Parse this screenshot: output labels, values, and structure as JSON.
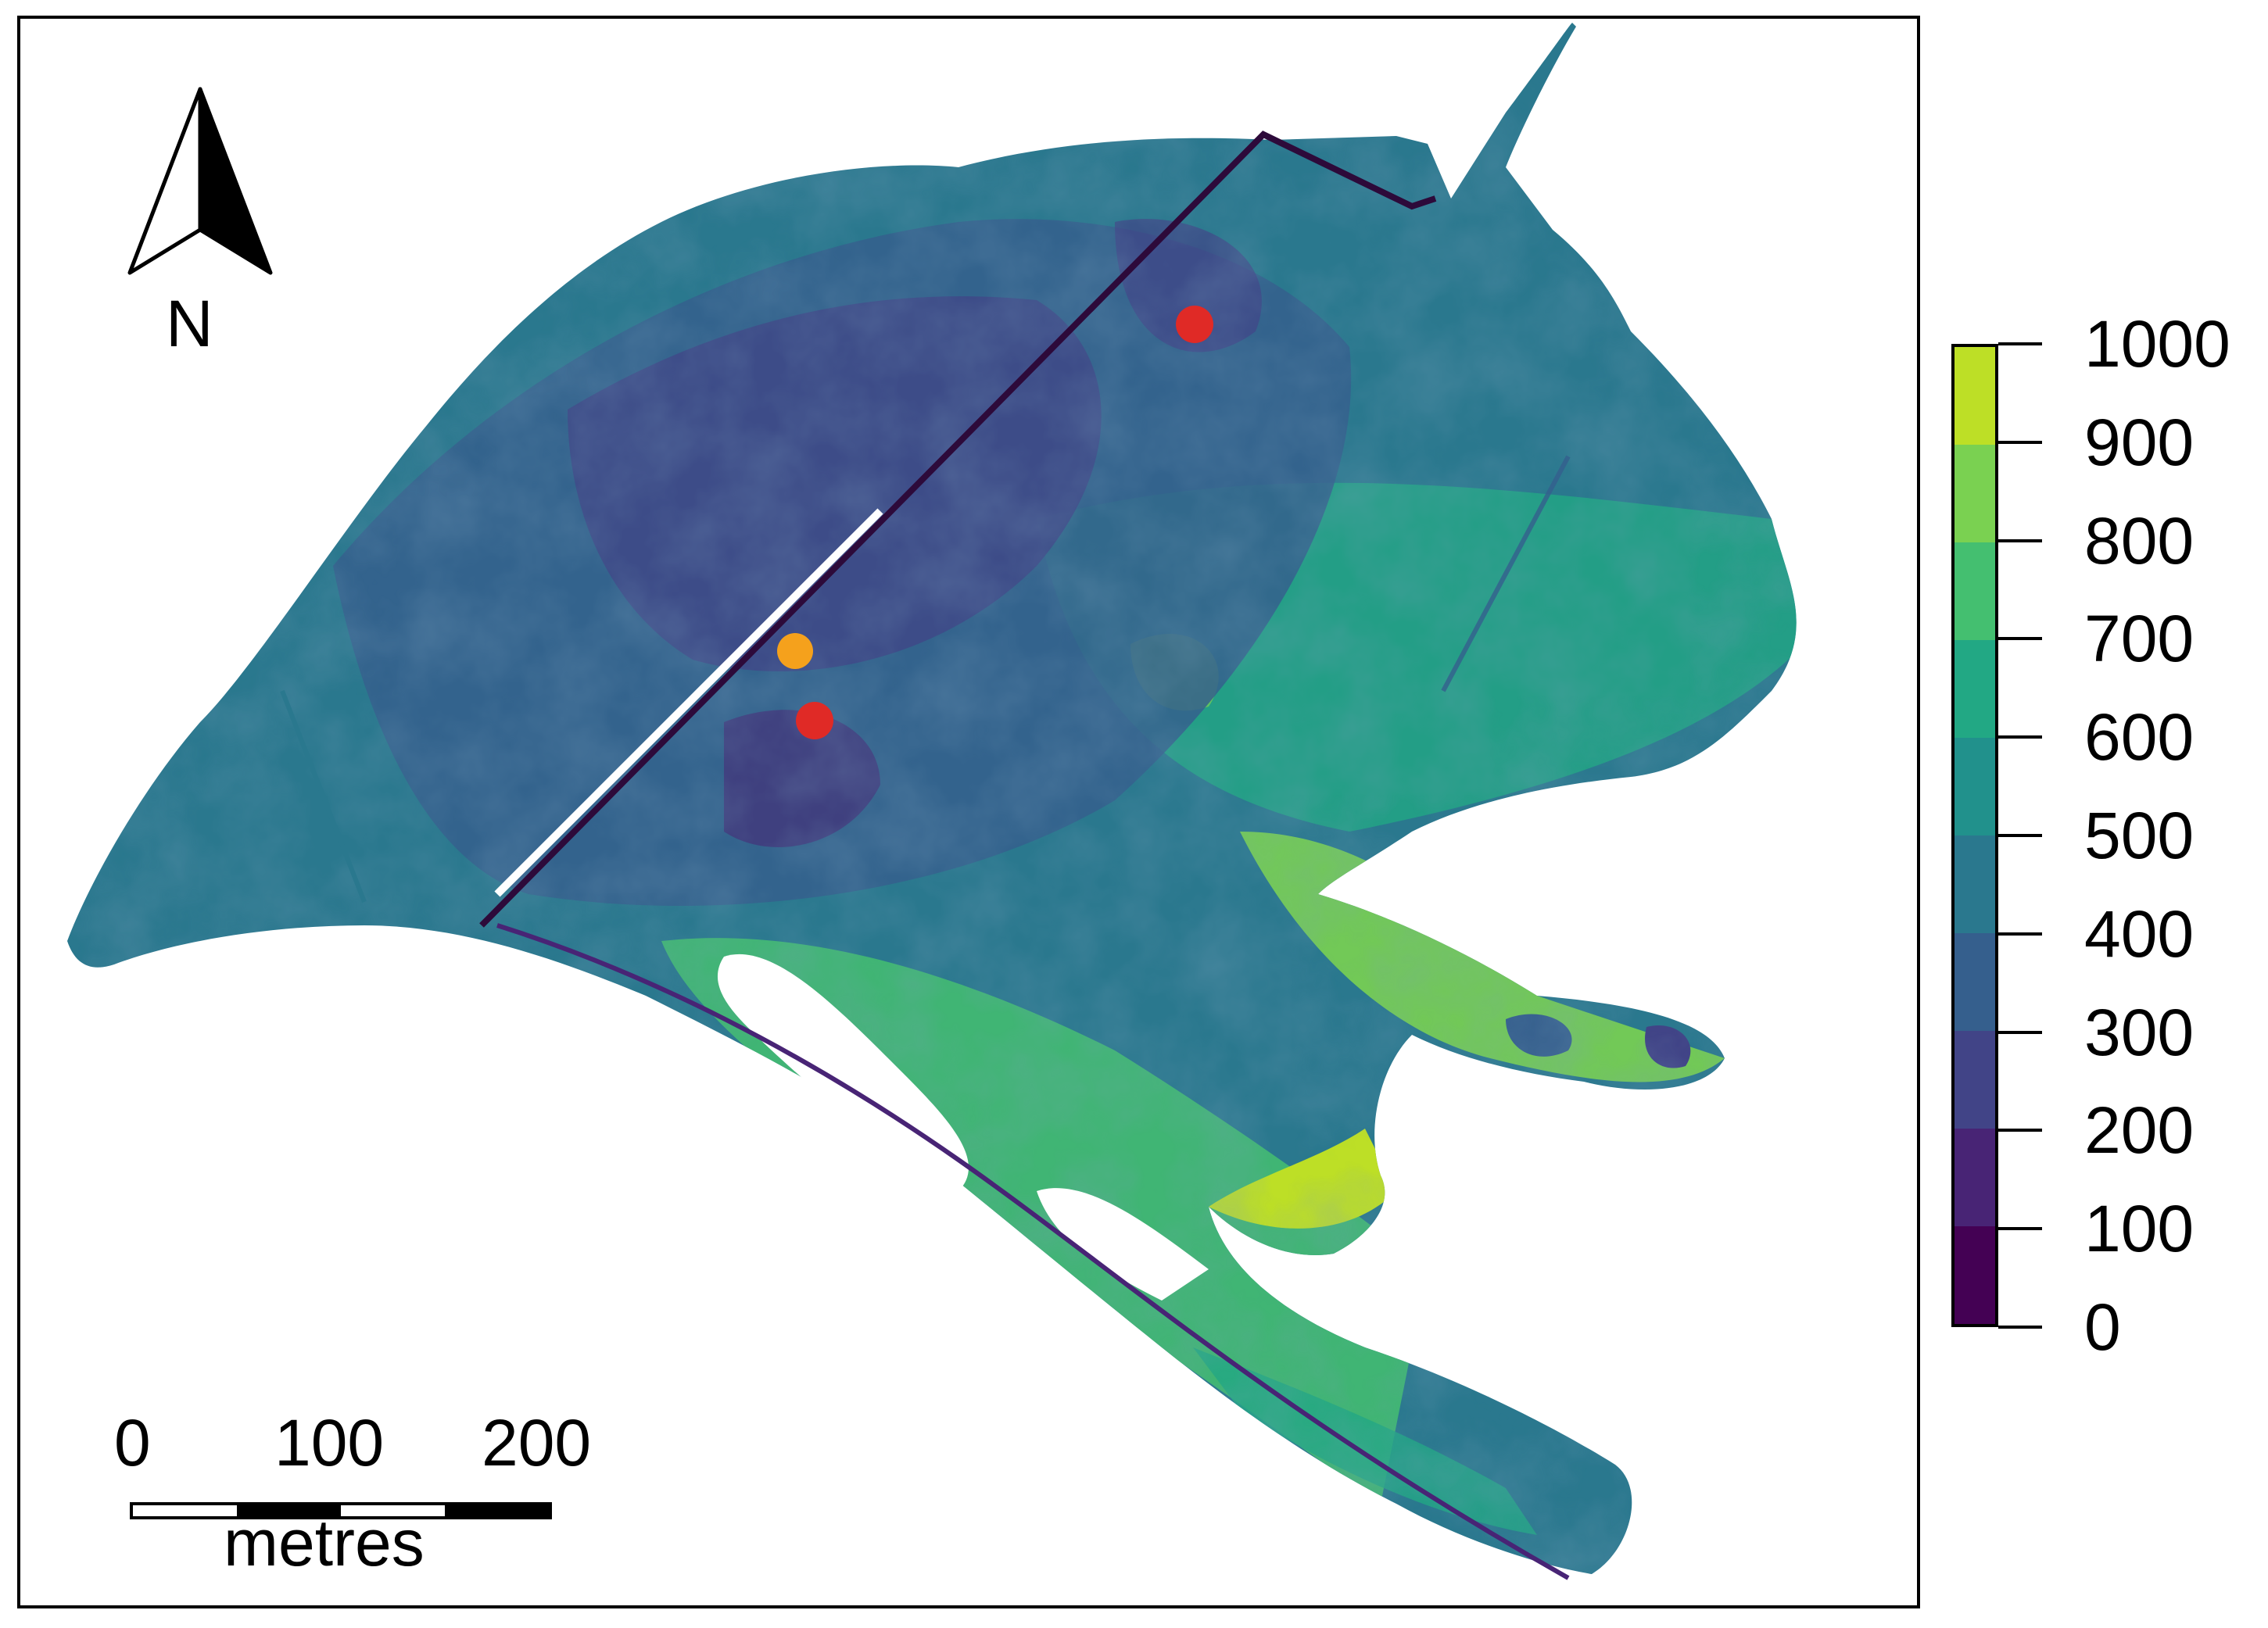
{
  "north_label": "N",
  "scale": {
    "ticks": [
      "0",
      "100",
      "200"
    ],
    "unit": "metres"
  },
  "legend": {
    "labels": [
      "1000",
      "900",
      "800",
      "700",
      "600",
      "500",
      "400",
      "300",
      "200",
      "100",
      "0"
    ],
    "colors": [
      "#440154",
      "#482475",
      "#414487",
      "#355f8d",
      "#2a788e",
      "#21918c",
      "#22a884",
      "#44bf70",
      "#7ad151",
      "#bddf26"
    ]
  },
  "colors": {
    "point_red": "#e02a26",
    "point_orange": "#f5a11c",
    "boundary_line": "#2d0a3a"
  },
  "points": [
    {
      "kind": "red",
      "color_key": "point_red"
    },
    {
      "kind": "orange",
      "color_key": "point_orange"
    },
    {
      "kind": "red",
      "color_key": "point_red"
    }
  ]
}
